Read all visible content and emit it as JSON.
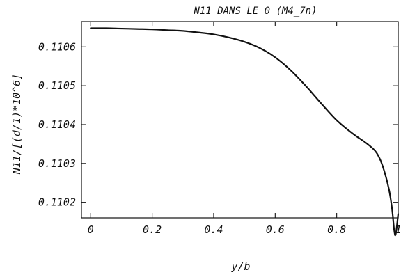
{
  "chart_data": {
    "type": "line",
    "title": "N11 DANS LE 0 (M4_7n)",
    "xlabel": "y/b",
    "ylabel": "N11/[(d/1)*10^6]",
    "xlim": [
      -0.03,
      1.0
    ],
    "ylim": [
      0.11016,
      0.110665
    ],
    "grid": false,
    "x_ticks": [
      0,
      0.2,
      0.4,
      0.6,
      0.8,
      1
    ],
    "x_tick_labels": [
      "0",
      "0.2",
      "0.4",
      "0.6",
      "0.8",
      "1"
    ],
    "y_ticks": [
      0.1102,
      0.1103,
      0.1104,
      0.1105,
      0.1106
    ],
    "y_tick_labels": [
      "0.1102",
      "0.1103",
      "0.1104",
      "0.1105",
      "0.1106"
    ],
    "series": [
      {
        "x": [
          0,
          0.05,
          0.1,
          0.15,
          0.2,
          0.25,
          0.3,
          0.35,
          0.4,
          0.45,
          0.5,
          0.55,
          0.6,
          0.65,
          0.7,
          0.75,
          0.8,
          0.85,
          0.9,
          0.93,
          0.95,
          0.97,
          0.98,
          0.99,
          1.0
        ],
        "y": [
          0.110648,
          0.110648,
          0.110647,
          0.110646,
          0.110645,
          0.110643,
          0.110641,
          0.110637,
          0.110632,
          0.110624,
          0.110613,
          0.110597,
          0.110573,
          0.11054,
          0.110499,
          0.110454,
          0.110411,
          0.110378,
          0.11035,
          0.110327,
          0.110292,
          0.110233,
          0.110183,
          0.110115,
          0.11017
        ]
      }
    ]
  }
}
